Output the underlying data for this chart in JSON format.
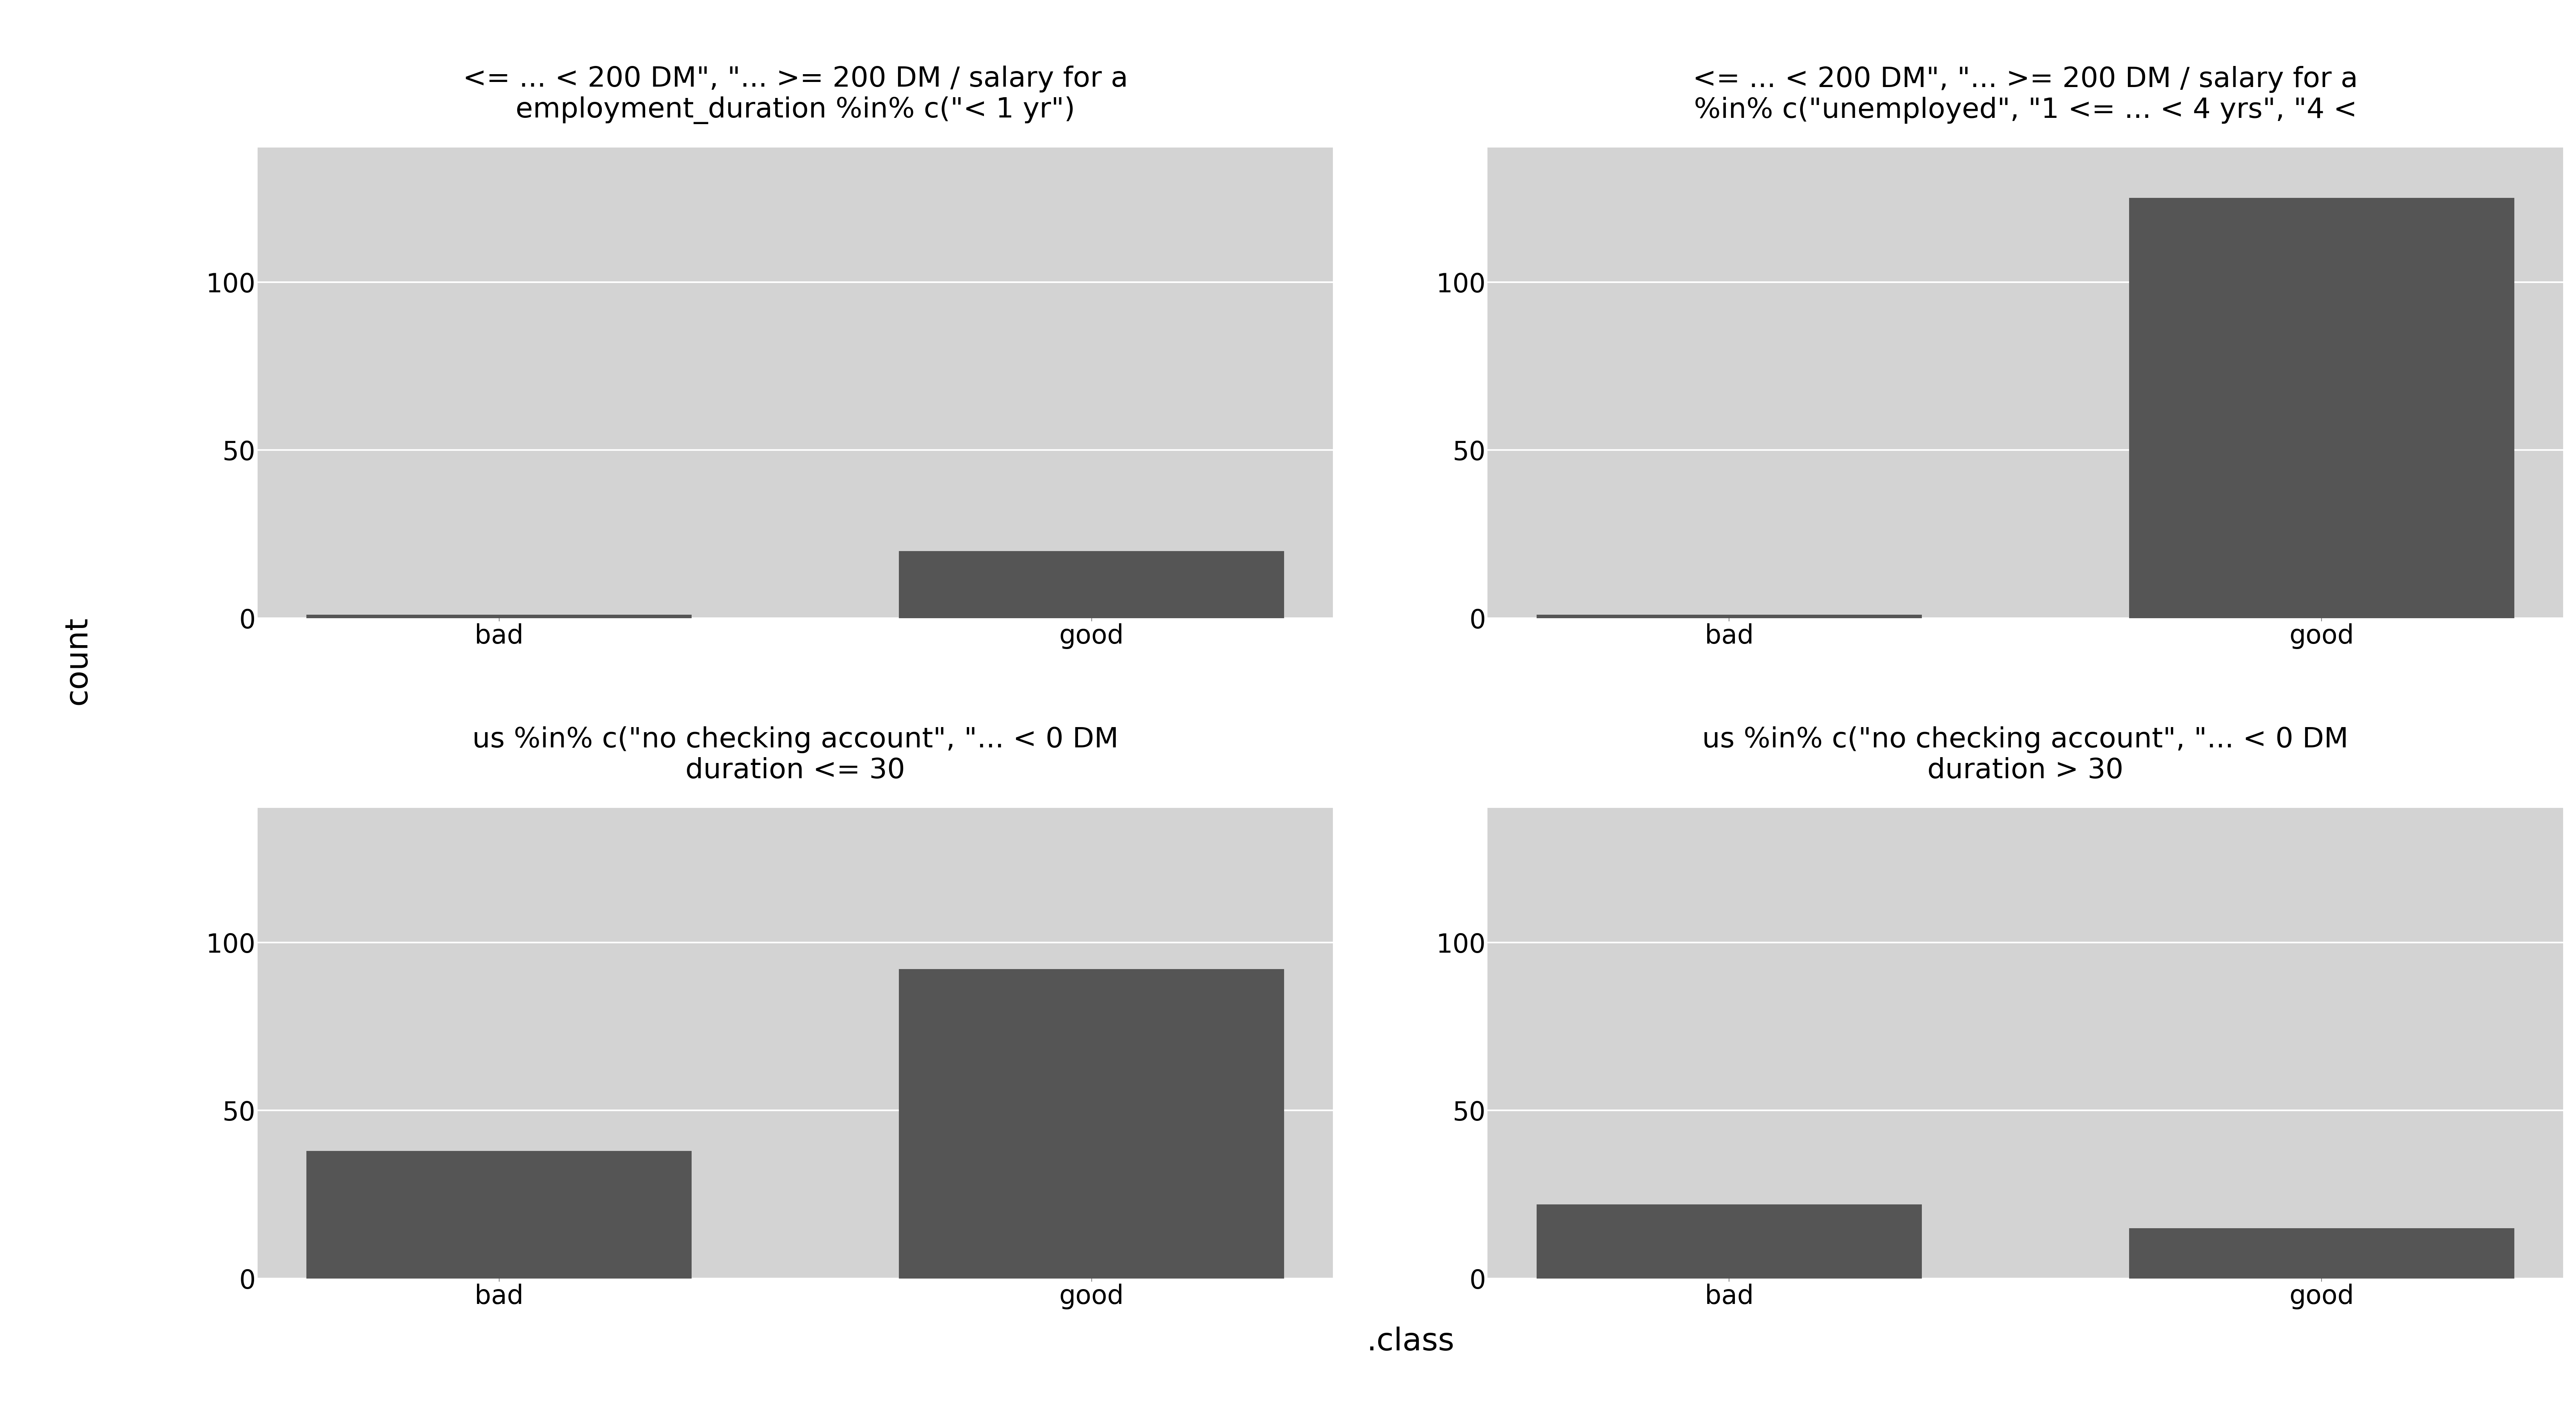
{
  "panels": [
    {
      "title_line1": "<= ... < 200 DM\", \"... >= 200 DM / salary for a",
      "title_line2": "employment_duration %in% c(\"< 1 yr\")",
      "bad": 1,
      "good": 20
    },
    {
      "title_line1": "<= ... < 200 DM\", \"... >= 200 DM / salary for a",
      "title_line2": "%in% c(\"unemployed\", \"1 <= ... < 4 yrs\", \"4 <",
      "bad": 1,
      "good": 125
    },
    {
      "title_line1": "us %in% c(\"no checking account\", \"... < 0 DM",
      "title_line2": "duration <= 30",
      "bad": 38,
      "good": 92
    },
    {
      "title_line1": "us %in% c(\"no checking account\", \"... < 0 DM",
      "title_line2": "duration > 30",
      "bad": 22,
      "good": 15
    }
  ],
  "bar_color": "#555555",
  "bg_color_outer": "#ffffff",
  "bg_color_strip": "#e0e0e0",
  "bg_color_plot": "#d3d3d3",
  "ylabel": "count",
  "xlabel": ".class",
  "categories": [
    "bad",
    "good"
  ],
  "title_fontsize": 52,
  "tick_fontsize": 48,
  "label_fontsize": 58,
  "strip_fontsize": 52,
  "yticks": [
    0,
    50,
    100
  ],
  "ylim": [
    0,
    140
  ],
  "bar_width": 0.65,
  "grid_color": "#ffffff",
  "grid_lw": 3.0
}
